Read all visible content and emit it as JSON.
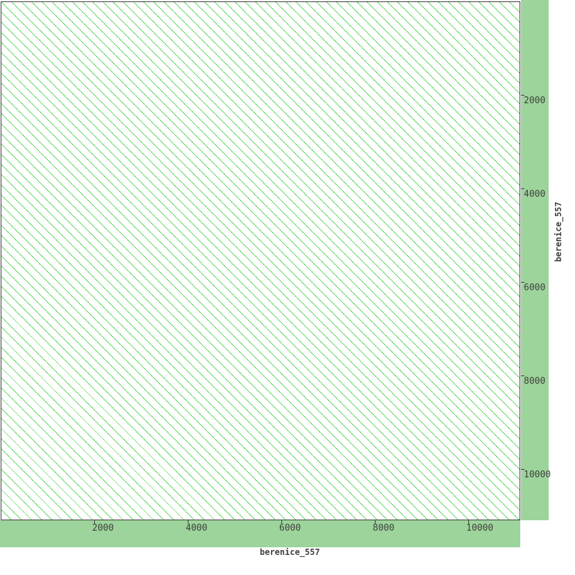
{
  "figure": {
    "kind": "sequence-self-dotplot"
  },
  "colors": {
    "page_bg": "#ffffff",
    "plot_bg": "#ffffff",
    "band_green": "#9dd49b",
    "hatch_green": "#21c821",
    "frame_dark": "#3c3c3c",
    "text_dark": "#3f3f3f"
  },
  "axes": {
    "x": {
      "label": "berenice_557",
      "ticks": [
        2000,
        4000,
        6000,
        8000,
        10000
      ],
      "range": [
        0,
        11100
      ]
    },
    "y": {
      "label": "berenice_557",
      "ticks": [
        2000,
        4000,
        6000,
        8000,
        10000
      ],
      "range": [
        0,
        11100
      ]
    }
  },
  "chart_data": {
    "type": "scatter",
    "subtype": "dotplot-self-alignment",
    "title": "",
    "xlabel": "berenice_557",
    "ylabel": "berenice_557",
    "xlim": [
      0,
      11100
    ],
    "ylim": [
      0,
      11100
    ],
    "x_ticks": [
      2000,
      4000,
      6000,
      8000,
      10000
    ],
    "y_ticks": [
      2000,
      4000,
      6000,
      8000,
      10000
    ],
    "grid": false,
    "legend": false,
    "pattern": {
      "description": "Dense set of parallel dotted diagonal lines of slope 1 running from top-left to bottom-right across the entire plot, indicating a tandem-repeat sequence aligned against itself; diagonals (including the main identity diagonal through the origin) are evenly spaced.",
      "diagonal_offset_step_units": 215,
      "approx_diagonal_count": 102,
      "line_color": "#21c821",
      "line_style": "dotted-1px"
    },
    "margins": {
      "right_band_color": "#9dd49b",
      "bottom_band_color": "#9dd49b"
    }
  }
}
